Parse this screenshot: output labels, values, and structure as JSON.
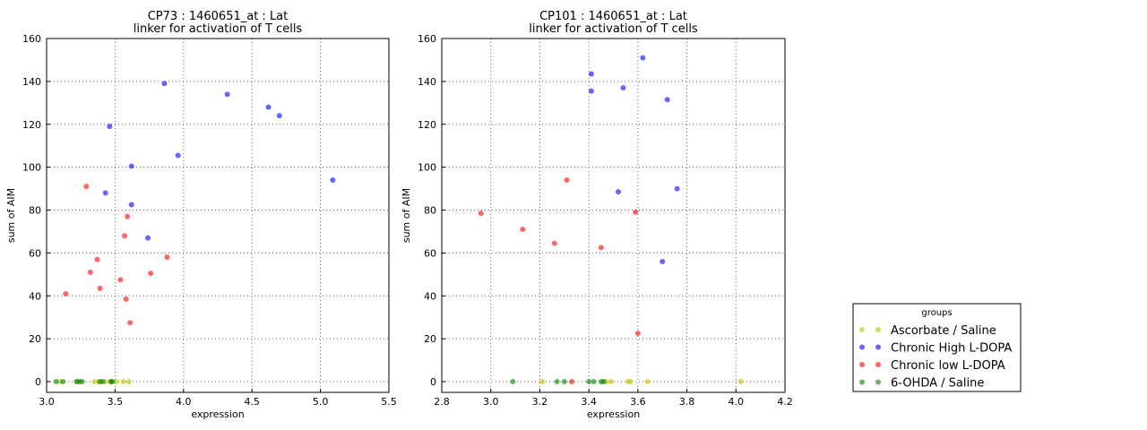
{
  "chart_data": [
    {
      "type": "scatter",
      "title": [
        "CP73 : 1460651_at : Lat",
        "linker for activation of T cells"
      ],
      "xlabel": "expression",
      "ylabel": "sum of AIM",
      "xlim": [
        3.0,
        5.5
      ],
      "ylim": [
        -5,
        160
      ],
      "xticks": [
        {
          "value": 3,
          "label": "3.0"
        },
        3.5,
        {
          "value": 4,
          "label": "4.0"
        },
        4.5,
        {
          "value": 5,
          "label": "5.0"
        },
        5.5
      ],
      "yticks": [
        0,
        20,
        40,
        60,
        80,
        100,
        120,
        140,
        160
      ],
      "grid": true,
      "series": [
        {
          "name": "Ascorbate / Saline",
          "color": "#bfbf00",
          "x": [
            3.1,
            3.22,
            3.35,
            3.38,
            3.43,
            3.47,
            3.51,
            3.56,
            3.6
          ],
          "values": [
            0,
            0,
            0,
            0,
            0,
            0,
            0,
            0,
            0
          ]
        },
        {
          "name": "Chronic High L-DOPA",
          "color": "#0000ff",
          "x": [
            3.46,
            3.86,
            4.32,
            4.62,
            4.7,
            3.96,
            3.62,
            3.43,
            3.62,
            3.74,
            5.09
          ],
          "values": [
            119,
            139,
            134,
            128,
            124,
            105.5,
            100.5,
            88,
            82.5,
            67,
            94
          ]
        },
        {
          "name": "Chronic low L-DOPA",
          "color": "#ff0000",
          "x": [
            3.29,
            3.59,
            3.57,
            3.88,
            3.37,
            3.32,
            3.76,
            3.54,
            3.39,
            3.14,
            3.58,
            3.61
          ],
          "values": [
            91,
            77,
            68,
            58,
            57,
            51,
            50.5,
            47.5,
            43.5,
            41,
            38.5,
            27.5
          ]
        },
        {
          "name": "6-OHDA / Saline",
          "color": "#008000",
          "x": [
            3.07,
            3.12,
            3.22,
            3.24,
            3.26,
            3.39,
            3.41,
            3.47,
            3.48
          ],
          "values": [
            0,
            0,
            0,
            0,
            0,
            0,
            0,
            0,
            0
          ]
        }
      ]
    },
    {
      "type": "scatter",
      "title": [
        "CP101 : 1460651_at : Lat",
        "linker for activation of T cells"
      ],
      "xlabel": "expression",
      "ylabel": "sum of AIM",
      "xlim": [
        2.8,
        4.2
      ],
      "ylim": [
        -5,
        160
      ],
      "xticks": [
        2.8,
        {
          "value": 3,
          "label": "3.0"
        },
        3.2,
        3.4,
        3.6,
        3.8,
        {
          "value": 4,
          "label": "4.0"
        },
        4.2
      ],
      "yticks": [
        0,
        20,
        40,
        60,
        80,
        100,
        120,
        140,
        160
      ],
      "grid": true,
      "series": [
        {
          "name": "Ascorbate / Saline",
          "color": "#bfbf00",
          "x": [
            3.21,
            3.47,
            3.49,
            3.56,
            3.57,
            3.64,
            4.02
          ],
          "values": [
            0,
            0,
            0,
            0,
            0,
            0,
            0
          ]
        },
        {
          "name": "Chronic High L-DOPA",
          "color": "#0000ff",
          "x": [
            3.41,
            3.62,
            3.41,
            3.54,
            3.72,
            3.52,
            3.76,
            3.7
          ],
          "values": [
            143.5,
            151,
            135.5,
            137,
            131.5,
            88.5,
            90,
            56
          ]
        },
        {
          "name": "Chronic low L-DOPA",
          "color": "#ff0000",
          "x": [
            2.96,
            3.31,
            3.13,
            3.26,
            3.45,
            3.59,
            3.6,
            3.33
          ],
          "values": [
            78.5,
            94,
            71,
            64.5,
            62.5,
            79,
            22.5,
            0
          ]
        },
        {
          "name": "6-OHDA / Saline",
          "color": "#008000",
          "x": [
            3.09,
            3.27,
            3.3,
            3.4,
            3.42,
            3.45,
            3.46
          ],
          "values": [
            0,
            0,
            0,
            0,
            0,
            0,
            0
          ]
        }
      ]
    }
  ],
  "legend": {
    "title": "groups"
  }
}
